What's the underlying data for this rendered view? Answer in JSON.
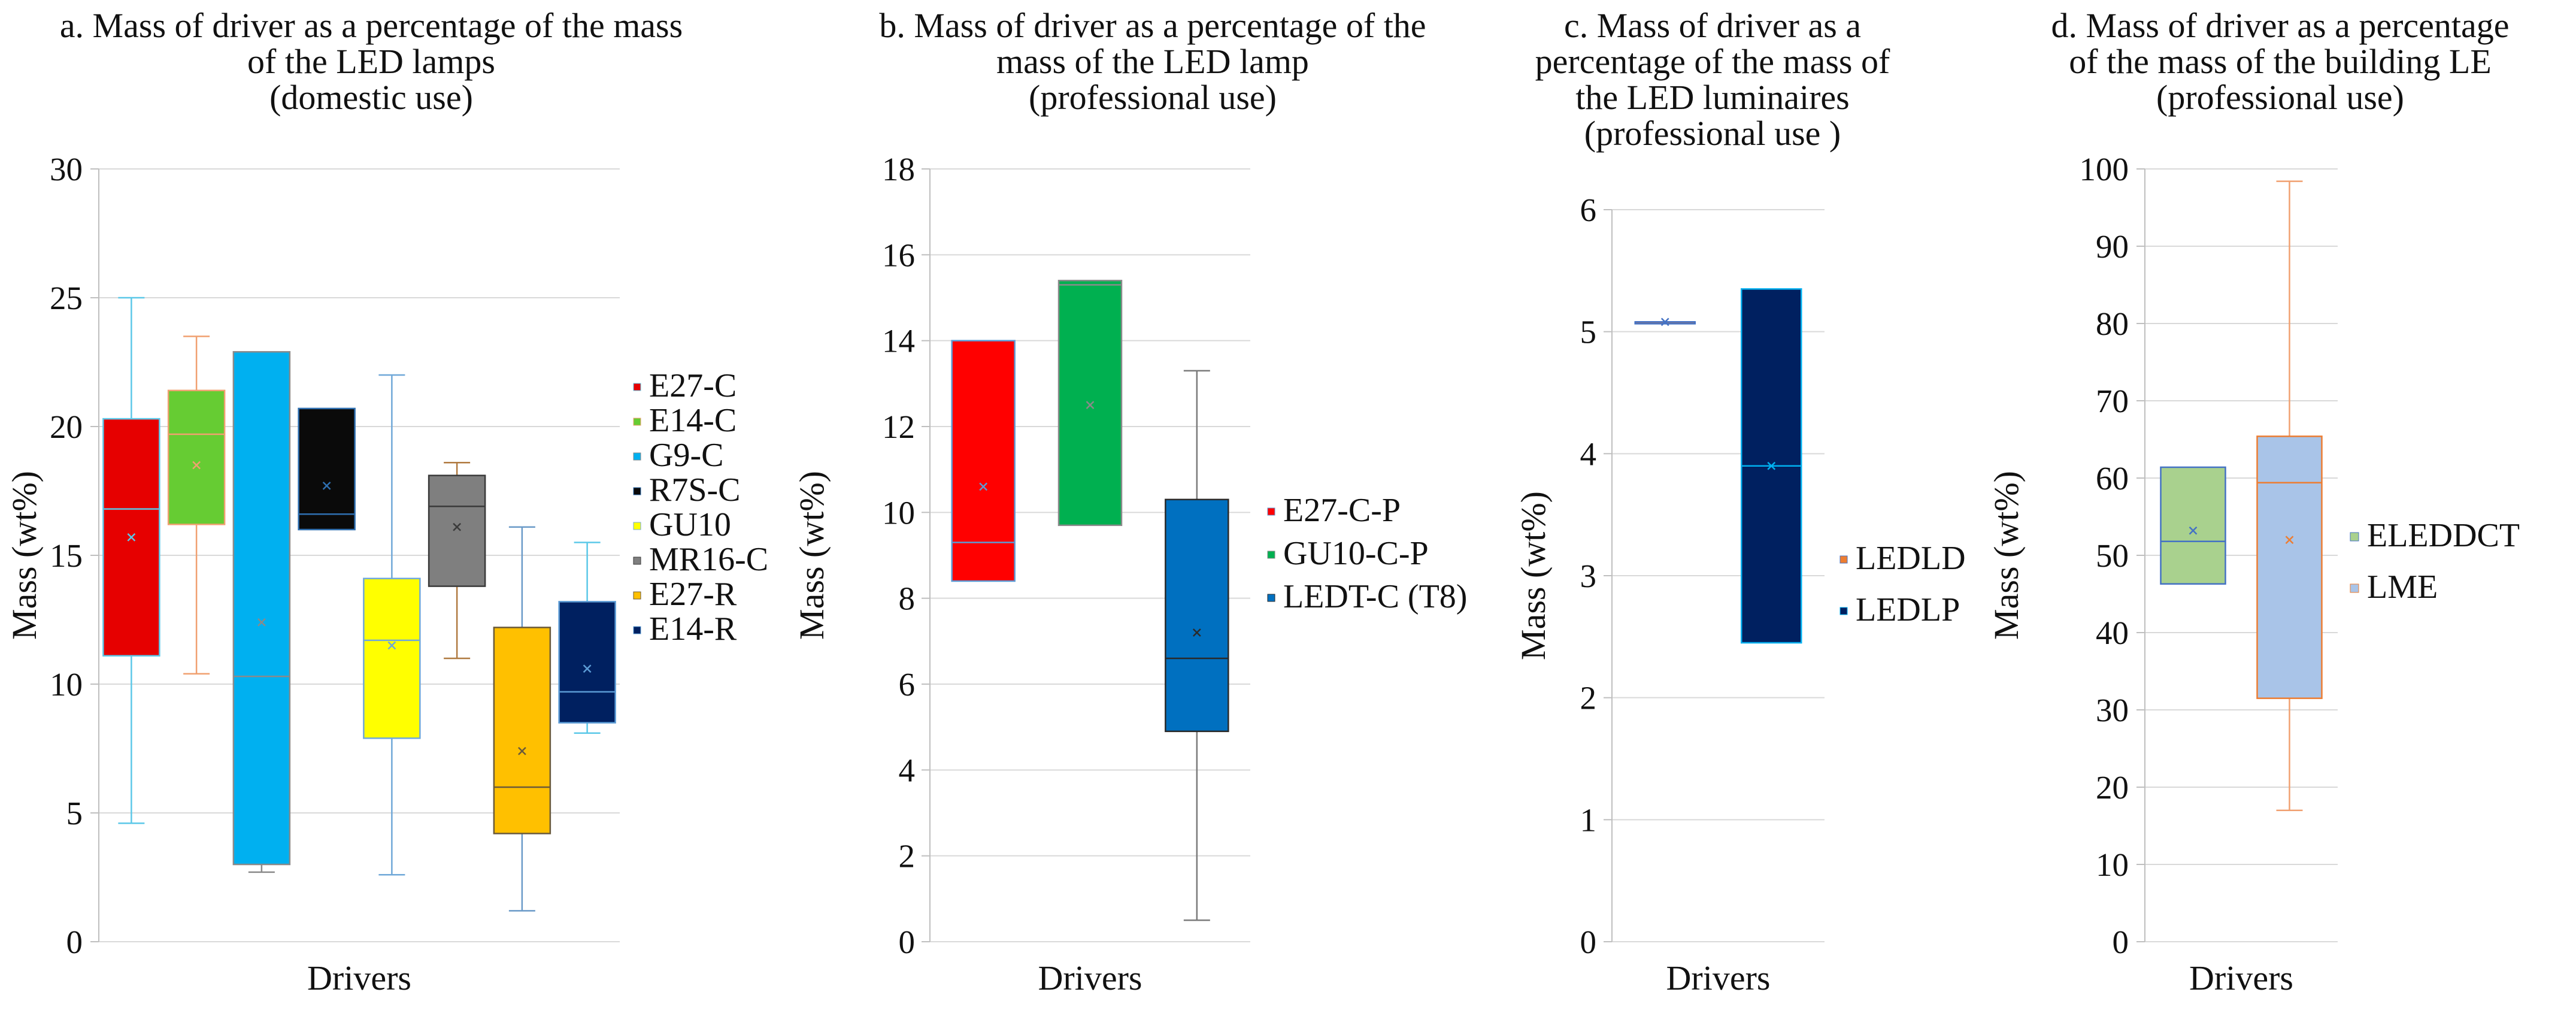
{
  "chart_data": [
    {
      "id": "a",
      "type": "boxplot",
      "title_lines": [
        "a. Mass of driver as a percentage of the mass",
        "of the LED lamps",
        "(domestic use)"
      ],
      "xlabel": "Drivers",
      "ylabel": "Mass (wt%)",
      "ylim": [
        0,
        30
      ],
      "yticks": [
        0,
        5,
        10,
        15,
        20,
        25,
        30
      ],
      "grid": true,
      "legend_position": "right",
      "series": [
        {
          "name": "E27-C",
          "color": "#e60000",
          "line": "#5bc8e8",
          "whisker_color": "#5bc8e8",
          "min": 4.6,
          "q1": 11.1,
          "median": 16.8,
          "q3": 20.3,
          "max": 25.0,
          "mean": 15.7
        },
        {
          "name": "E14-C",
          "color": "#66cc33",
          "line": "#f0a070",
          "whisker_color": "#f0a070",
          "min": 10.4,
          "q1": 16.2,
          "median": 19.7,
          "q3": 21.4,
          "max": 23.5,
          "mean": 18.5
        },
        {
          "name": "G9-C",
          "color": "#00b0f0",
          "line": "#8a8a8a",
          "whisker_color": "#8a8a8a",
          "min": 2.7,
          "q1": 3.0,
          "median": 10.3,
          "q3": 22.9,
          "max": 22.9,
          "mean": 12.4
        },
        {
          "name": "R7S-C",
          "color": "#0a0a0a",
          "line": "#2f6fb0",
          "whisker_color": "#2f6fb0",
          "min": 16.0,
          "q1": 16.0,
          "median": 16.6,
          "q3": 20.7,
          "max": 20.7,
          "mean": 17.7
        },
        {
          "name": "GU10",
          "color": "#ffff00",
          "line": "#70a8d8",
          "whisker_color": "#70a8d8",
          "min": 2.6,
          "q1": 7.9,
          "median": 11.7,
          "q3": 14.1,
          "max": 22.0,
          "mean": 11.5
        },
        {
          "name": "MR16-C",
          "color": "#7f7f7f",
          "line": "#3a3a3a",
          "whisker_color": "#b07a40",
          "min": 11.0,
          "q1": 13.8,
          "median": 16.9,
          "q3": 18.1,
          "max": 18.6,
          "mean": 16.1
        },
        {
          "name": "E27-R",
          "color": "#ffc000",
          "line": "#6a5a3a",
          "whisker_color": "#6a9ac8",
          "min": 1.2,
          "q1": 4.2,
          "median": 6.0,
          "q3": 12.2,
          "max": 16.1,
          "mean": 7.4
        },
        {
          "name": "E14-R",
          "color": "#002060",
          "line": "#5b9bd5",
          "whisker_color": "#5bc8e8",
          "min": 8.1,
          "q1": 8.5,
          "median": 9.7,
          "q3": 13.2,
          "max": 15.5,
          "mean": 10.6
        }
      ]
    },
    {
      "id": "b",
      "type": "boxplot",
      "title_lines": [
        "b. Mass of driver as a percentage of the",
        "mass of the LED lamp",
        "(professional use)"
      ],
      "xlabel": "Drivers",
      "ylabel": "Mass (wt%)",
      "ylim": [
        0,
        18
      ],
      "yticks": [
        0,
        2,
        4,
        6,
        8,
        10,
        12,
        14,
        16,
        18
      ],
      "grid": true,
      "legend_position": "right",
      "series": [
        {
          "name": "E27-C-P",
          "color": "#ff0000",
          "line": "#5b9bd5",
          "whisker_color": "#5b9bd5",
          "min": 8.4,
          "q1": 8.4,
          "median": 9.3,
          "q3": 14.0,
          "max": 14.0,
          "mean": 10.6
        },
        {
          "name": "GU10-C-P",
          "color": "#00b050",
          "line": "#8a8a8a",
          "whisker_color": "#8a8a8a",
          "min": 9.7,
          "q1": 9.7,
          "median": 15.3,
          "q3": 15.4,
          "max": 15.4,
          "mean": 12.5
        },
        {
          "name": "LEDT-C (T8)",
          "color": "#0070c0",
          "line": "#2a2a2a",
          "whisker_color": "#7a7a7a",
          "min": 0.5,
          "q1": 4.9,
          "median": 6.6,
          "q3": 10.3,
          "max": 13.3,
          "mean": 7.2
        }
      ]
    },
    {
      "id": "c",
      "type": "boxplot",
      "title_lines": [
        "c. Mass of driver as a",
        "percentage of the mass of",
        "the  LED luminaires",
        "(professional use )"
      ],
      "xlabel": "Drivers",
      "ylabel": "Mass (wt%)",
      "ylim": [
        0,
        6
      ],
      "yticks": [
        0,
        1,
        2,
        3,
        4,
        5,
        6
      ],
      "grid": true,
      "legend_position": "right",
      "series": [
        {
          "name": "LEDLD",
          "color": "#ed7d31",
          "line": "#4472c4",
          "whisker_color": "#4472c4",
          "min": 5.08,
          "q1": 5.08,
          "median": 5.08,
          "q3": 5.08,
          "max": 5.08,
          "mean": 5.08
        },
        {
          "name": "LEDLP",
          "color": "#002060",
          "line": "#00b0f0",
          "whisker_color": "#00b0f0",
          "min": 2.45,
          "q1": 2.45,
          "median": 3.9,
          "q3": 5.35,
          "max": 5.35,
          "mean": 3.9
        }
      ]
    },
    {
      "id": "d",
      "type": "boxplot",
      "title_lines": [
        "d. Mass of driver as a percentage",
        "of the mass of the  building  LE",
        "(professional use)"
      ],
      "xlabel": "Drivers",
      "ylabel": "Mass (wt%)",
      "ylim": [
        0,
        100
      ],
      "yticks": [
        0,
        10,
        20,
        30,
        40,
        50,
        60,
        70,
        80,
        90,
        100
      ],
      "grid": true,
      "legend_position": "right",
      "series": [
        {
          "name": "ELEDDCT",
          "color": "#a9d18e",
          "line": "#4472c4",
          "whisker_color": "#4472c4",
          "min": 46.3,
          "q1": 46.3,
          "median": 51.8,
          "q3": 61.4,
          "max": 61.4,
          "mean": 53.2
        },
        {
          "name": "LME",
          "color": "#a9c4e8",
          "line": "#ed7d31",
          "whisker_color": "#f0a070",
          "min": 17.0,
          "q1": 31.5,
          "median": 59.4,
          "q3": 65.4,
          "max": 98.4,
          "mean": 52.0
        }
      ]
    }
  ]
}
